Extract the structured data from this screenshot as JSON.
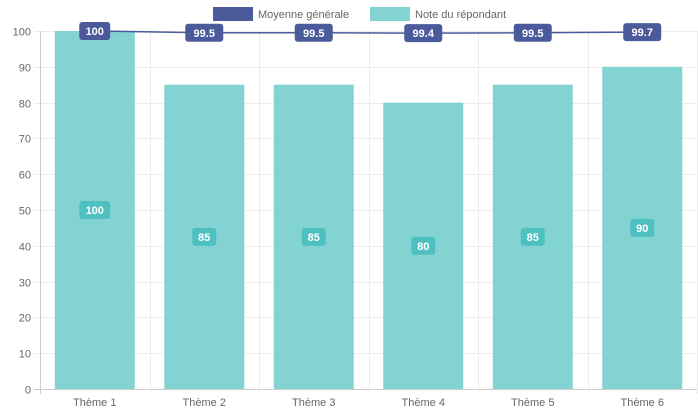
{
  "chart_data": {
    "type": "bar",
    "categories": [
      "Thème 1",
      "Thème 2",
      "Thème 3",
      "Thème 4",
      "Thème 5",
      "Thème 6"
    ],
    "series": [
      {
        "name": "Moyenne générale",
        "render": "line",
        "color": "#4a5a9a",
        "values": [
          100,
          99.5,
          99.5,
          99.4,
          99.5,
          99.7
        ],
        "labels": [
          "100",
          "99.5",
          "99.5",
          "99.4",
          "99.5",
          "99.7"
        ]
      },
      {
        "name": "Note du répondant",
        "render": "bar",
        "color": "#84d3d3",
        "label_color": "#4fc0c0",
        "values": [
          100,
          85,
          85,
          80,
          85,
          90
        ],
        "labels": [
          "100",
          "85",
          "85",
          "80",
          "85",
          "90"
        ]
      }
    ],
    "ylim": [
      0,
      100
    ],
    "yticks": [
      "0",
      "10",
      "20",
      "30",
      "40",
      "50",
      "60",
      "70",
      "80",
      "90",
      "100"
    ],
    "grid": true,
    "legend": "top-center",
    "title": "",
    "xlabel": "",
    "ylabel": ""
  }
}
